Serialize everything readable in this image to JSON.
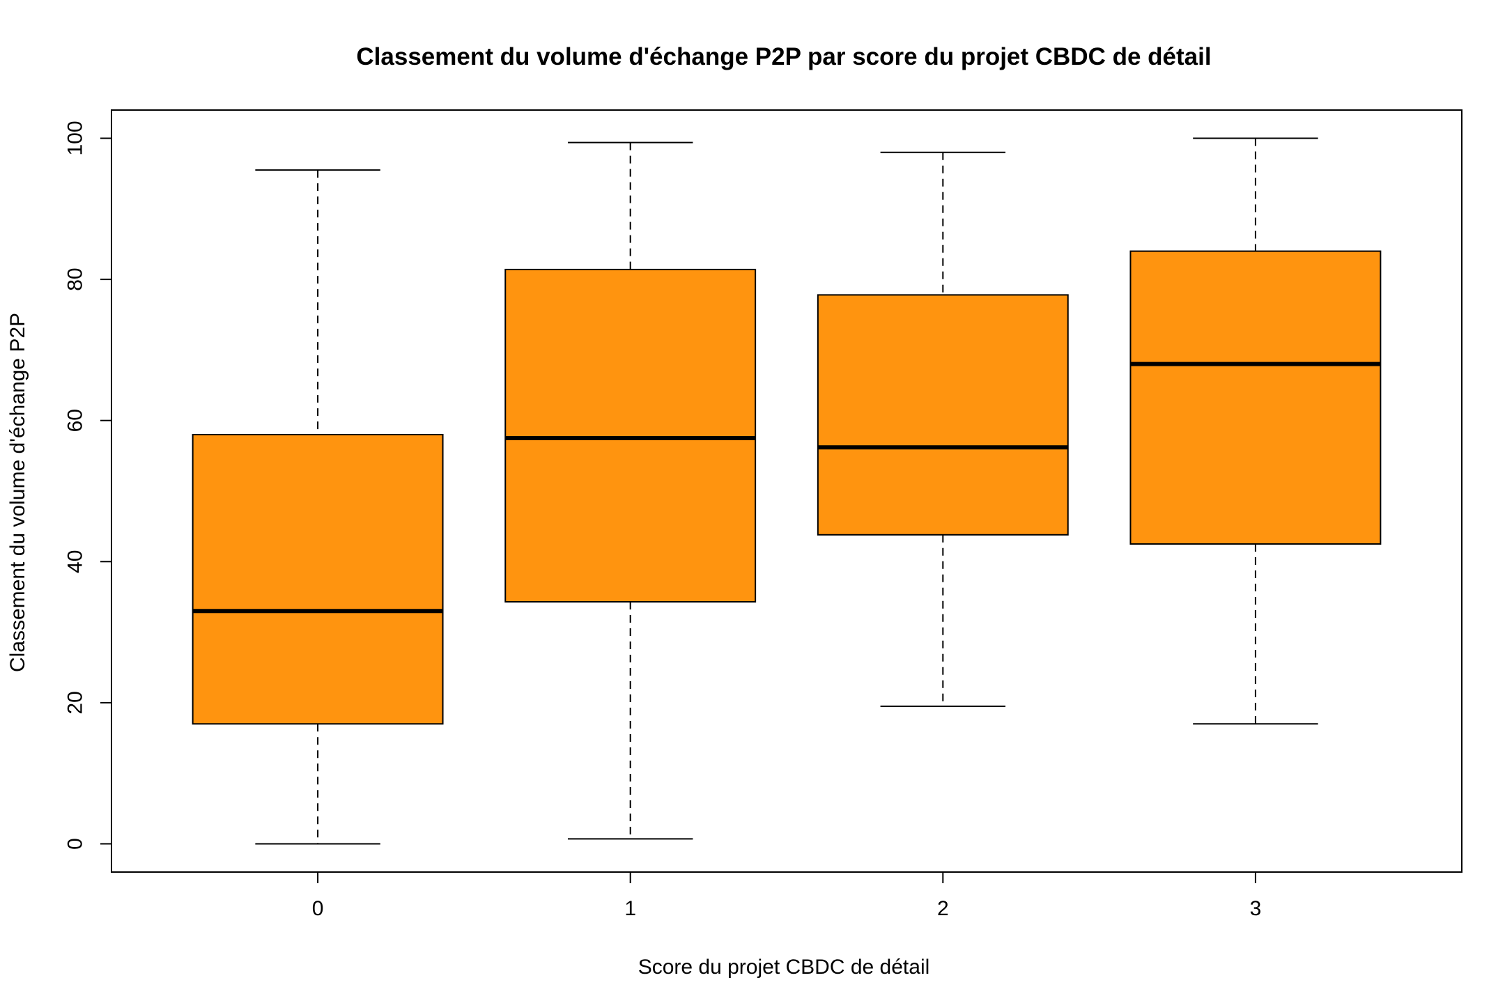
{
  "chart_data": {
    "type": "boxplot",
    "title": "Classement du volume d'échange P2P par score du projet CBDC de détail",
    "xlabel": "Score du projet CBDC de détail",
    "ylabel": "Classement du volume d'échange P2P",
    "categories": [
      "0",
      "1",
      "2",
      "3"
    ],
    "boxes": [
      {
        "category": "0",
        "whisker_low": 0,
        "q1": 17,
        "median": 33,
        "q3": 58,
        "whisker_high": 95.5
      },
      {
        "category": "1",
        "whisker_low": 0.7,
        "q1": 34.3,
        "median": 57.5,
        "q3": 81.4,
        "whisker_high": 99.4
      },
      {
        "category": "2",
        "whisker_low": 19.5,
        "q1": 43.8,
        "median": 56.2,
        "q3": 77.8,
        "whisker_high": 98
      },
      {
        "category": "3",
        "whisker_low": 17,
        "q1": 42.5,
        "median": 68,
        "q3": 84,
        "whisker_high": 100
      }
    ],
    "ylim": [
      -4,
      104
    ],
    "yticks": [
      0,
      20,
      40,
      60,
      80,
      100
    ],
    "grid": false,
    "legend": "none",
    "box_color": "#FF940F",
    "line_color": "#000000"
  }
}
